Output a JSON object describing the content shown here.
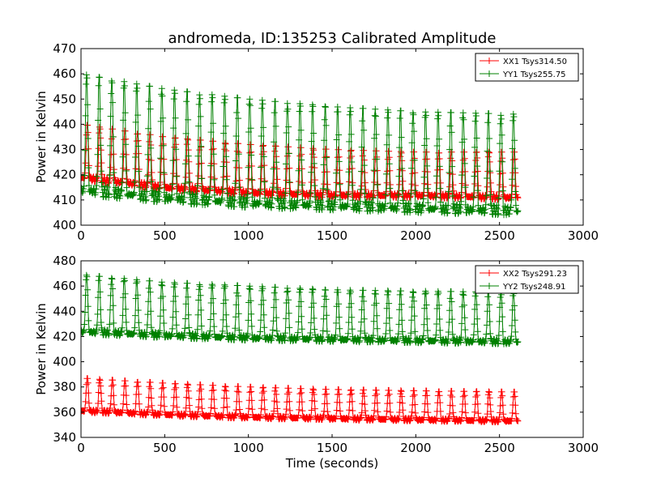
{
  "figure": {
    "title": "andromeda, ID:135253 Calibrated Amplitude"
  },
  "chart_data": [
    {
      "type": "line",
      "title": "andromeda, ID:135253 Calibrated Amplitude",
      "xlabel": "",
      "ylabel": "Power in Kelvin",
      "xlim": [
        0,
        3000
      ],
      "ylim": [
        400,
        470
      ],
      "xticks": [
        "0",
        "500",
        "1000",
        "1500",
        "2000",
        "2500",
        "3000"
      ],
      "yticks": [
        "400",
        "410",
        "420",
        "430",
        "440",
        "450",
        "460",
        "470"
      ],
      "grid": false,
      "legend_position": "top-right",
      "marker": "+",
      "duration_s": 2610,
      "oscillation_period_s": 75,
      "series": [
        {
          "name": "XX1 Tsys314.50",
          "color": "#ff0000",
          "trend_x": [
            0,
            500,
            1000,
            1500,
            2000,
            2600
          ],
          "trend_low": [
            418,
            414,
            412,
            411,
            411,
            410
          ],
          "trend_high": [
            440,
            435,
            432,
            430,
            429,
            429
          ]
        },
        {
          "name": "YY1 Tsys255.75",
          "color": "#008000",
          "trend_x": [
            0,
            500,
            1000,
            1500,
            2000,
            2600
          ],
          "trend_low": [
            412,
            409,
            407,
            406,
            405,
            404
          ],
          "trend_high": [
            460,
            454,
            450,
            447,
            445,
            444
          ]
        }
      ]
    },
    {
      "type": "line",
      "title": "",
      "xlabel": "Time (seconds)",
      "ylabel": "Power in Kelvin",
      "xlim": [
        0,
        3000
      ],
      "ylim": [
        340,
        480
      ],
      "xticks": [
        "0",
        "500",
        "1000",
        "1500",
        "2000",
        "2500",
        "3000"
      ],
      "yticks": [
        "340",
        "360",
        "380",
        "400",
        "420",
        "440",
        "460",
        "480"
      ],
      "grid": false,
      "legend_position": "top-right",
      "marker": "+",
      "duration_s": 2610,
      "oscillation_period_s": 75,
      "series": [
        {
          "name": "XX2 Tsys291.23",
          "color": "#ff0000",
          "trend_x": [
            0,
            500,
            1000,
            1500,
            2000,
            2600
          ],
          "trend_low": [
            360,
            357,
            355,
            354,
            353,
            352
          ],
          "trend_high": [
            387,
            383,
            380,
            378,
            377,
            376
          ]
        },
        {
          "name": "YY2 Tsys248.91",
          "color": "#008000",
          "trend_x": [
            0,
            500,
            1000,
            1500,
            2000,
            2600
          ],
          "trend_low": [
            422,
            419,
            417,
            416,
            415,
            414
          ],
          "trend_high": [
            469,
            463,
            460,
            457,
            456,
            455
          ]
        }
      ]
    }
  ]
}
